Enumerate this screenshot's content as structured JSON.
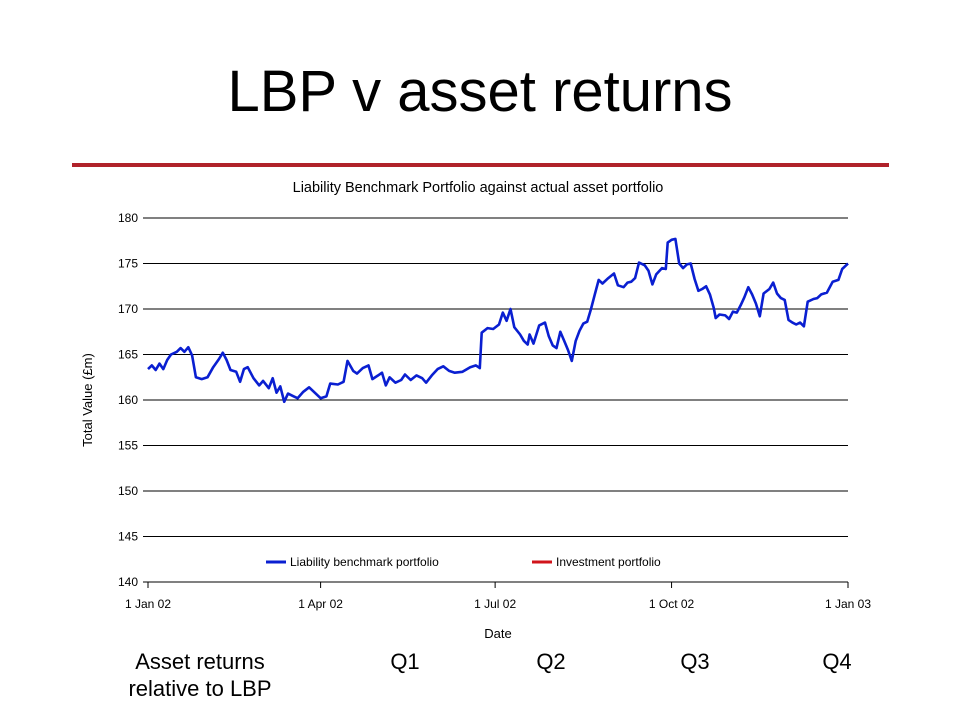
{
  "slide": {
    "title": "LBP v asset returns",
    "rule_color": "#b0222a"
  },
  "bottom": {
    "row_label_line1": "Asset returns",
    "row_label_line2": "relative to LBP",
    "quarters": [
      "Q1",
      "Q2",
      "Q3",
      "Q4"
    ]
  },
  "chart_data": {
    "type": "line",
    "title": "Liability Benchmark Portfolio against actual asset portfolio",
    "xlabel": "Date",
    "ylabel": "Total Value (£m)",
    "ylim": [
      140,
      180
    ],
    "yticks": [
      140,
      145,
      150,
      155,
      160,
      165,
      170,
      175,
      180
    ],
    "xlim": [
      "2002-01-01",
      "2003-01-01"
    ],
    "xticks": [
      "2002-01-01",
      "2002-04-01",
      "2002-07-01",
      "2002-10-01",
      "2003-01-01"
    ],
    "xtick_labels": [
      "1 Jan 02",
      "1 Apr 02",
      "1 Jul 02",
      "1 Oct 02",
      "1 Jan 03"
    ],
    "grid": "horizontal",
    "legend": "bottom-center inside plot",
    "series": [
      {
        "name": "Liability benchmark portfolio",
        "color": "#0a1fd1",
        "points": [
          [
            "2002-01-01",
            163.4
          ],
          [
            "2002-01-03",
            163.8
          ],
          [
            "2002-01-05",
            163.3
          ],
          [
            "2002-01-07",
            164.0
          ],
          [
            "2002-01-09",
            163.4
          ],
          [
            "2002-01-11",
            164.4
          ],
          [
            "2002-01-13",
            165.0
          ],
          [
            "2002-01-16",
            165.3
          ],
          [
            "2002-01-18",
            165.7
          ],
          [
            "2002-01-20",
            165.3
          ],
          [
            "2002-01-22",
            165.8
          ],
          [
            "2002-01-24",
            164.9
          ],
          [
            "2002-01-26",
            162.5
          ],
          [
            "2002-01-29",
            162.3
          ],
          [
            "2002-02-01",
            162.5
          ],
          [
            "2002-02-04",
            163.6
          ],
          [
            "2002-02-07",
            164.5
          ],
          [
            "2002-02-09",
            165.2
          ],
          [
            "2002-02-11",
            164.4
          ],
          [
            "2002-02-13",
            163.3
          ],
          [
            "2002-02-16",
            163.1
          ],
          [
            "2002-02-18",
            162.0
          ],
          [
            "2002-02-20",
            163.4
          ],
          [
            "2002-02-22",
            163.6
          ],
          [
            "2002-02-25",
            162.4
          ],
          [
            "2002-02-28",
            161.6
          ],
          [
            "2002-03-02",
            162.1
          ],
          [
            "2002-03-05",
            161.3
          ],
          [
            "2002-03-07",
            162.4
          ],
          [
            "2002-03-09",
            160.8
          ],
          [
            "2002-03-11",
            161.5
          ],
          [
            "2002-03-13",
            159.8
          ],
          [
            "2002-03-15",
            160.7
          ],
          [
            "2002-03-18",
            160.4
          ],
          [
            "2002-03-20",
            160.2
          ],
          [
            "2002-03-23",
            160.9
          ],
          [
            "2002-03-26",
            161.4
          ],
          [
            "2002-03-29",
            160.8
          ],
          [
            "2002-04-01",
            160.2
          ],
          [
            "2002-04-04",
            160.4
          ],
          [
            "2002-04-06",
            161.8
          ],
          [
            "2002-04-10",
            161.7
          ],
          [
            "2002-04-13",
            162.0
          ],
          [
            "2002-04-15",
            164.3
          ],
          [
            "2002-04-18",
            163.2
          ],
          [
            "2002-04-20",
            162.9
          ],
          [
            "2002-04-23",
            163.5
          ],
          [
            "2002-04-26",
            163.8
          ],
          [
            "2002-04-28",
            162.3
          ],
          [
            "2002-05-01",
            162.7
          ],
          [
            "2002-05-03",
            163.0
          ],
          [
            "2002-05-05",
            161.6
          ],
          [
            "2002-05-07",
            162.5
          ],
          [
            "2002-05-10",
            161.9
          ],
          [
            "2002-05-13",
            162.2
          ],
          [
            "2002-05-15",
            162.8
          ],
          [
            "2002-05-18",
            162.2
          ],
          [
            "2002-05-21",
            162.7
          ],
          [
            "2002-05-24",
            162.4
          ],
          [
            "2002-05-26",
            161.9
          ],
          [
            "2002-05-29",
            162.7
          ],
          [
            "2002-06-01",
            163.4
          ],
          [
            "2002-06-04",
            163.7
          ],
          [
            "2002-06-07",
            163.2
          ],
          [
            "2002-06-10",
            163.0
          ],
          [
            "2002-06-14",
            163.1
          ],
          [
            "2002-06-18",
            163.6
          ],
          [
            "2002-06-21",
            163.8
          ],
          [
            "2002-06-23",
            163.5
          ],
          [
            "2002-06-24",
            167.4
          ],
          [
            "2002-06-27",
            167.9
          ],
          [
            "2002-06-30",
            167.8
          ],
          [
            "2002-07-03",
            168.3
          ],
          [
            "2002-07-05",
            169.6
          ],
          [
            "2002-07-07",
            168.7
          ],
          [
            "2002-07-09",
            170.0
          ],
          [
            "2002-07-11",
            168.0
          ],
          [
            "2002-07-14",
            167.2
          ],
          [
            "2002-07-16",
            166.5
          ],
          [
            "2002-07-18",
            166.1
          ],
          [
            "2002-07-19",
            167.2
          ],
          [
            "2002-07-21",
            166.2
          ],
          [
            "2002-07-24",
            168.2
          ],
          [
            "2002-07-27",
            168.5
          ],
          [
            "2002-07-29",
            167.0
          ],
          [
            "2002-07-31",
            166.0
          ],
          [
            "2002-08-02",
            165.7
          ],
          [
            "2002-08-04",
            167.5
          ],
          [
            "2002-08-06",
            166.5
          ],
          [
            "2002-08-08",
            165.5
          ],
          [
            "2002-08-10",
            164.3
          ],
          [
            "2002-08-12",
            166.5
          ],
          [
            "2002-08-14",
            167.6
          ],
          [
            "2002-08-16",
            168.4
          ],
          [
            "2002-08-18",
            168.6
          ],
          [
            "2002-08-20",
            170.0
          ],
          [
            "2002-08-22",
            171.6
          ],
          [
            "2002-08-24",
            173.2
          ],
          [
            "2002-08-26",
            172.8
          ],
          [
            "2002-08-29",
            173.4
          ],
          [
            "2002-09-01",
            173.9
          ],
          [
            "2002-09-03",
            172.6
          ],
          [
            "2002-09-06",
            172.4
          ],
          [
            "2002-09-08",
            172.9
          ],
          [
            "2002-09-10",
            173.0
          ],
          [
            "2002-09-12",
            173.4
          ],
          [
            "2002-09-14",
            175.1
          ],
          [
            "2002-09-17",
            174.8
          ],
          [
            "2002-09-19",
            174.2
          ],
          [
            "2002-09-21",
            172.7
          ],
          [
            "2002-09-23",
            173.8
          ],
          [
            "2002-09-26",
            174.5
          ],
          [
            "2002-09-28",
            174.4
          ],
          [
            "2002-09-29",
            177.3
          ],
          [
            "2002-10-01",
            177.6
          ],
          [
            "2002-10-03",
            177.7
          ],
          [
            "2002-10-05",
            175.0
          ],
          [
            "2002-10-07",
            174.5
          ],
          [
            "2002-10-09",
            174.9
          ],
          [
            "2002-10-11",
            175.0
          ],
          [
            "2002-10-13",
            173.3
          ],
          [
            "2002-10-15",
            172.0
          ],
          [
            "2002-10-17",
            172.2
          ],
          [
            "2002-10-19",
            172.5
          ],
          [
            "2002-10-21",
            171.6
          ],
          [
            "2002-10-23",
            170.1
          ],
          [
            "2002-10-24",
            169.0
          ],
          [
            "2002-10-26",
            169.4
          ],
          [
            "2002-10-29",
            169.3
          ],
          [
            "2002-10-31",
            168.9
          ],
          [
            "2002-11-02",
            169.7
          ],
          [
            "2002-11-04",
            169.6
          ],
          [
            "2002-11-06",
            170.4
          ],
          [
            "2002-11-08",
            171.3
          ],
          [
            "2002-11-10",
            172.4
          ],
          [
            "2002-11-12",
            171.6
          ],
          [
            "2002-11-14",
            170.6
          ],
          [
            "2002-11-16",
            169.2
          ],
          [
            "2002-11-18",
            171.7
          ],
          [
            "2002-11-21",
            172.2
          ],
          [
            "2002-11-23",
            172.9
          ],
          [
            "2002-11-25",
            171.7
          ],
          [
            "2002-11-27",
            171.2
          ],
          [
            "2002-11-29",
            171.0
          ],
          [
            "2002-12-01",
            168.8
          ],
          [
            "2002-12-03",
            168.5
          ],
          [
            "2002-12-05",
            168.3
          ],
          [
            "2002-12-07",
            168.5
          ],
          [
            "2002-12-09",
            168.1
          ],
          [
            "2002-12-11",
            170.8
          ],
          [
            "2002-12-14",
            171.1
          ],
          [
            "2002-12-16",
            171.2
          ],
          [
            "2002-12-18",
            171.6
          ],
          [
            "2002-12-21",
            171.8
          ],
          [
            "2002-12-24",
            173.0
          ],
          [
            "2002-12-27",
            173.2
          ],
          [
            "2002-12-29",
            174.4
          ],
          [
            "2002-12-31",
            174.8
          ],
          [
            "2003-01-01",
            175.0
          ]
        ]
      },
      {
        "name": "Investment portfolio",
        "color": "#d1141b",
        "points": []
      }
    ]
  }
}
